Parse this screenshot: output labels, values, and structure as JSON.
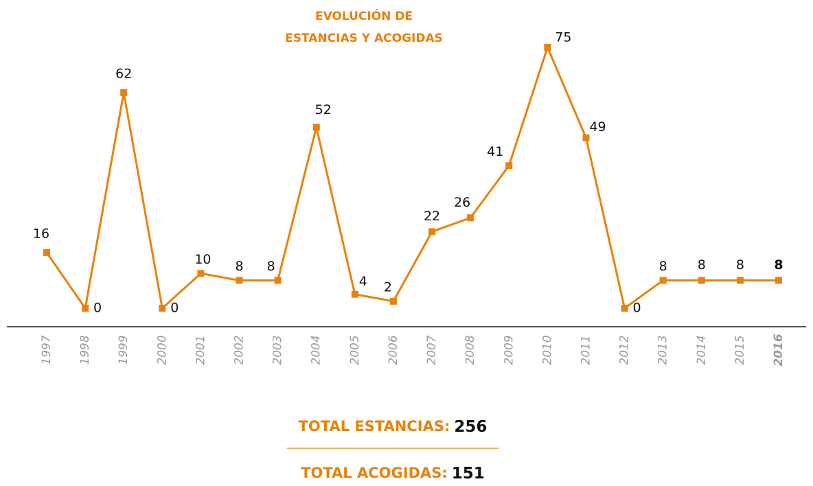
{
  "chart_data": {
    "type": "line",
    "title": [
      "EVOLUCIÓN DE",
      "ESTANCIAS Y ACOGIDAS"
    ],
    "categories": [
      "1997",
      "1998",
      "1999",
      "2000",
      "2001",
      "2002",
      "2003",
      "2004",
      "2005",
      "2006",
      "2007",
      "2008",
      "2009",
      "2010",
      "2011",
      "2012",
      "2013",
      "2014",
      "2015",
      "2016"
    ],
    "series": [
      {
        "color": "#e8820c",
        "values": [
          16,
          0,
          62,
          0,
          10,
          8,
          8,
          52,
          4,
          2,
          22,
          26,
          41,
          75,
          49,
          0,
          8,
          8,
          8,
          8
        ]
      }
    ]
  },
  "totals": [
    {
      "label": "TOTAL ESTANCIAS:",
      "value": 256
    },
    {
      "label": "TOTAL ACOGIDAS:",
      "value": 151
    }
  ]
}
